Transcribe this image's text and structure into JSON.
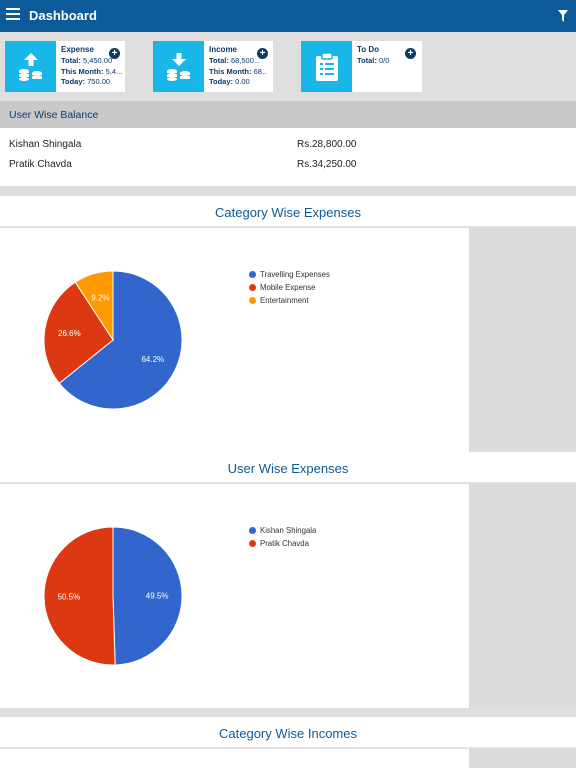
{
  "header": {
    "title": "Dashboard",
    "menu_icon": "hamburger-menu-icon",
    "filter_icon": "filter-icon"
  },
  "cards": {
    "expense": {
      "title": "Expense",
      "total_label": "Total:",
      "total": "5,450.00",
      "month_label": "This Month:",
      "month": "5,4...",
      "today_label": "Today:",
      "today": "750.00",
      "icon": "upload-coins-icon"
    },
    "income": {
      "title": "Income",
      "total_label": "Total:",
      "total": "68,500...",
      "month_label": "This Month:",
      "month": "68,...",
      "today_label": "Today:",
      "today": "0.00",
      "icon": "download-coins-icon"
    },
    "todo": {
      "title": "To Do",
      "total_label": "Total:",
      "total": "0/0",
      "icon": "clipboard-icon"
    },
    "plus_symbol": "+"
  },
  "user_balance": {
    "title": "User Wise Balance",
    "rows": [
      {
        "name": "Kishan Shingala",
        "amount": "Rs.28,800.00"
      },
      {
        "name": "Pratik Chavda",
        "amount": "Rs.34,250.00"
      }
    ]
  },
  "sections": {
    "category_expenses": "Category Wise Expenses",
    "user_expenses": "User Wise Expenses",
    "category_incomes": "Category Wise Incomes"
  },
  "colors": {
    "blue": "#3366cc",
    "red": "#dc3912",
    "orange": "#ff9900",
    "header": "#0c5a99",
    "tile": "#18b7e8"
  },
  "chart_data": [
    {
      "type": "pie",
      "title": "Category Wise Expenses",
      "series": [
        {
          "name": "Travelling Expenses",
          "value": 64.2,
          "label": "64.2%"
        },
        {
          "name": "Mobile Expense",
          "value": 26.6,
          "label": "26.6%"
        },
        {
          "name": "Entertainment",
          "value": 9.2,
          "label": "9.2%"
        }
      ],
      "legend": "right"
    },
    {
      "type": "pie",
      "title": "User Wise Expenses",
      "series": [
        {
          "name": "Kishan Shingala",
          "value": 49.5,
          "label": "49.5%"
        },
        {
          "name": "Pratik Chavda",
          "value": 50.5,
          "label": "50.5%"
        }
      ],
      "legend": "right"
    }
  ]
}
